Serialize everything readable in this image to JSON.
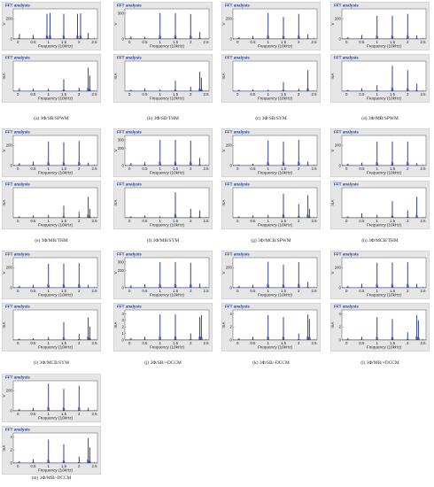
{
  "common": {
    "window_title": "FFT analysis",
    "xlabel": "Frequency (10kHz)",
    "xticks": [
      "0",
      "0.5",
      "1",
      "1.5",
      "2",
      "2.5"
    ],
    "xlim": [
      -0.15,
      2.6
    ]
  },
  "colors": {
    "panel_bg": "#e6e6e6",
    "plot_bg": "#ffffff",
    "bar": "#1c2f8f",
    "title_text": "#1a3c9c"
  },
  "chart_data": [
    {
      "type": "bar",
      "title": "(a) 3Φ/SB/SPWM",
      "voltage": {
        "ylabel": "V",
        "yticks": [
          "0",
          "200"
        ],
        "ylim": [
          0,
          300
        ],
        "x": [
          0.05,
          0.5,
          0.95,
          1.05,
          1.5,
          1.95,
          2.05,
          2.3
        ],
        "values": [
          50,
          40,
          250,
          260,
          250,
          250,
          255,
          60
        ]
      },
      "current": {
        "ylabel": "mA",
        "yticks": [],
        "ylim": [
          0,
          100
        ],
        "x": [
          0.05,
          0.5,
          1.0,
          1.5,
          2.0,
          2.3,
          2.35
        ],
        "values": [
          10,
          8,
          8,
          40,
          12,
          78,
          52
        ]
      }
    },
    {
      "type": "bar",
      "title": "(b) 3Φ/SB/THM",
      "voltage": {
        "ylabel": "V",
        "yticks": [
          "0",
          "300"
        ],
        "ylim": [
          0,
          350
        ],
        "x": [
          0.05,
          0.5,
          1.0,
          1.5,
          2.0,
          2.3
        ],
        "values": [
          30,
          25,
          300,
          300,
          290,
          80
        ]
      },
      "current": {
        "ylabel": "mA",
        "yticks": [],
        "ylim": [
          0,
          100
        ],
        "x": [
          0.05,
          0.5,
          1.0,
          1.5,
          2.0,
          2.3,
          2.35
        ],
        "values": [
          5,
          10,
          6,
          35,
          15,
          65,
          45
        ]
      }
    },
    {
      "type": "bar",
      "title": "(c) 3Φ/SB/SYM",
      "voltage": {
        "ylabel": "V",
        "yticks": [
          "0",
          "200"
        ],
        "ylim": [
          0,
          300
        ],
        "x": [
          0.05,
          0.5,
          1.0,
          1.5,
          2.0,
          2.3
        ],
        "values": [
          20,
          30,
          260,
          220,
          250,
          45
        ]
      },
      "current": {
        "ylabel": "mA",
        "yticks": [],
        "ylim": [
          0,
          100
        ],
        "x": [
          0.05,
          0.5,
          1.0,
          1.5,
          2.0,
          2.3
        ],
        "values": [
          5,
          6,
          5,
          30,
          8,
          70
        ]
      }
    },
    {
      "type": "bar",
      "title": "(d) 3Φ/MB/SPWM",
      "voltage": {
        "ylabel": "V",
        "yticks": [
          "0",
          "200"
        ],
        "ylim": [
          0,
          300
        ],
        "x": [
          0.05,
          0.5,
          1.0,
          1.5,
          2.0,
          2.3
        ],
        "values": [
          20,
          40,
          230,
          230,
          250,
          35
        ]
      },
      "current": {
        "ylabel": "mA",
        "yticks": [],
        "ylim": [
          0,
          100
        ],
        "x": [
          0.05,
          0.5,
          1.0,
          1.5,
          2.0,
          2.3
        ],
        "values": [
          5,
          10,
          20,
          85,
          70,
          25
        ]
      }
    },
    {
      "type": "bar",
      "title": "(e) 3Φ/MB/THM",
      "voltage": {
        "ylabel": "V",
        "yticks": [
          "0",
          "200"
        ],
        "ylim": [
          0,
          300
        ],
        "x": [
          0.05,
          0.5,
          1.0,
          1.5,
          2.0,
          2.3
        ],
        "values": [
          25,
          40,
          240,
          230,
          245,
          30
        ]
      },
      "current": {
        "ylabel": "mA",
        "yticks": [],
        "ylim": [
          0,
          100
        ],
        "x": [
          0.05,
          0.5,
          1.0,
          1.5,
          2.0,
          2.3,
          2.35
        ],
        "values": [
          5,
          8,
          10,
          40,
          20,
          70,
          30
        ]
      }
    },
    {
      "type": "bar",
      "title": "(f) 3Φ/MB/SYM",
      "voltage": {
        "ylabel": "V",
        "yticks": [
          "0",
          "200",
          "300"
        ],
        "ylim": [
          0,
          350
        ],
        "x": [
          0.05,
          0.5,
          1.0,
          1.5,
          2.0,
          2.3
        ],
        "values": [
          30,
          40,
          300,
          300,
          290,
          90
        ]
      },
      "current": {
        "ylabel": "mA",
        "yticks": [],
        "ylim": [
          0,
          100
        ],
        "x": [
          0.05,
          0.5,
          1.0,
          1.5,
          2.0,
          2.3
        ],
        "values": [
          5,
          8,
          5,
          85,
          30,
          25
        ]
      }
    },
    {
      "type": "bar",
      "title": "(g) 3Φ/MCB/SPWM",
      "voltage": {
        "ylabel": "V",
        "yticks": [
          "0",
          "200"
        ],
        "ylim": [
          0,
          300
        ],
        "x": [
          0.05,
          0.5,
          1.0,
          1.5,
          2.0,
          2.3
        ],
        "values": [
          10,
          20,
          250,
          240,
          255,
          40
        ]
      },
      "current": {
        "ylabel": "mA",
        "yticks": [],
        "ylim": [
          0,
          100
        ],
        "x": [
          0.05,
          0.5,
          1.0,
          1.5,
          2.0,
          2.3,
          2.35
        ],
        "values": [
          5,
          8,
          10,
          80,
          45,
          75,
          30
        ]
      }
    },
    {
      "type": "bar",
      "title": "(h) 3Φ/MCB/THM",
      "voltage": {
        "ylabel": "V",
        "yticks": [
          "0",
          "200"
        ],
        "ylim": [
          0,
          300
        ],
        "x": [
          0.05,
          0.5,
          1.0,
          1.5,
          2.0,
          2.3
        ],
        "values": [
          20,
          30,
          240,
          240,
          240,
          25
        ]
      },
      "current": {
        "ylabel": "mA",
        "yticks": [],
        "ylim": [
          0,
          100
        ],
        "x": [
          0.05,
          0.5,
          1.0,
          1.5,
          2.0,
          2.3
        ],
        "values": [
          5,
          15,
          10,
          55,
          25,
          70
        ]
      }
    },
    {
      "type": "bar",
      "title": "(i) 3Φ/MCB/SYM",
      "voltage": {
        "ylabel": "V",
        "yticks": [
          "0",
          "200"
        ],
        "ylim": [
          0,
          300
        ],
        "x": [
          0.05,
          0.5,
          1.0,
          1.5,
          2.0,
          2.3
        ],
        "values": [
          20,
          30,
          240,
          240,
          245,
          30
        ]
      },
      "current": {
        "ylabel": "mA",
        "yticks": [],
        "ylim": [
          0,
          100
        ],
        "x": [
          0.05,
          0.5,
          1.0,
          1.5,
          2.0,
          2.3,
          2.35
        ],
        "values": [
          5,
          6,
          10,
          60,
          20,
          75,
          45
        ]
      }
    },
    {
      "type": "bar",
      "title": "(j) 3Φ/SB/+DCCM",
      "voltage": {
        "ylabel": "V",
        "yticks": [
          "0",
          "200",
          "300"
        ],
        "ylim": [
          0,
          350
        ],
        "x": [
          0.05,
          0.5,
          1.0,
          1.5,
          2.0,
          2.3
        ],
        "values": [
          30,
          40,
          300,
          300,
          290,
          50
        ]
      },
      "current": {
        "ylabel": "mA",
        "yticks": [
          "0",
          "1",
          "2",
          "3",
          "4"
        ],
        "ylim": [
          0,
          4.6
        ],
        "x": [
          0.05,
          0.5,
          1.0,
          1.5,
          2.0,
          2.3,
          2.35
        ],
        "values": [
          0.3,
          0.5,
          3.9,
          3.9,
          1.0,
          3.5,
          3.8
        ]
      }
    },
    {
      "type": "bar",
      "title": "(k) 3Φ/SB/-DCCM",
      "voltage": {
        "ylabel": "V",
        "yticks": [
          "0",
          "200"
        ],
        "ylim": [
          0,
          300
        ],
        "x": [
          0.05,
          0.5,
          1.0,
          1.5,
          2.0,
          2.3
        ],
        "values": [
          20,
          30,
          260,
          230,
          255,
          60
        ]
      },
      "current": {
        "ylabel": "mA",
        "yticks": [
          "0",
          "2",
          "4"
        ],
        "ylim": [
          0,
          4.6
        ],
        "x": [
          0.05,
          0.5,
          1.0,
          1.5,
          2.0,
          2.3,
          2.35
        ],
        "values": [
          0.3,
          0.5,
          3.8,
          3.5,
          1.0,
          3.9,
          3.2
        ]
      }
    },
    {
      "type": "bar",
      "title": "(l) 3Φ/MB/+DCCM",
      "voltage": {
        "ylabel": "V",
        "yticks": [
          "0",
          "200"
        ],
        "ylim": [
          0,
          300
        ],
        "x": [
          0.05,
          0.5,
          1.0,
          1.5,
          2.0,
          2.3
        ],
        "values": [
          20,
          40,
          250,
          250,
          255,
          40
        ]
      },
      "current": {
        "ylabel": "mA",
        "yticks": [
          "0",
          "2",
          "4"
        ],
        "ylim": [
          0,
          4.6
        ],
        "x": [
          0.05,
          0.5,
          1.0,
          1.5,
          2.0,
          2.3,
          2.35
        ],
        "values": [
          0.3,
          0.5,
          3.5,
          3.2,
          1.2,
          3.8,
          3.0
        ]
      }
    },
    {
      "type": "bar",
      "title": "(m) 3Φ/MB/-DCCM",
      "voltage": {
        "ylabel": "V",
        "yticks": [
          "0",
          "200"
        ],
        "ylim": [
          0,
          300
        ],
        "x": [
          0.05,
          0.5,
          1.0,
          1.5,
          2.0,
          2.3
        ],
        "values": [
          20,
          30,
          270,
          220,
          250,
          30
        ]
      },
      "current": {
        "ylabel": "mA",
        "yticks": [
          "0",
          "2",
          "4"
        ],
        "ylim": [
          0,
          4.6
        ],
        "x": [
          0.05,
          0.5,
          1.0,
          1.5,
          2.0,
          2.3,
          2.35
        ],
        "values": [
          0.3,
          0.6,
          3.6,
          2.9,
          1.0,
          3.8,
          2.4
        ]
      }
    }
  ]
}
